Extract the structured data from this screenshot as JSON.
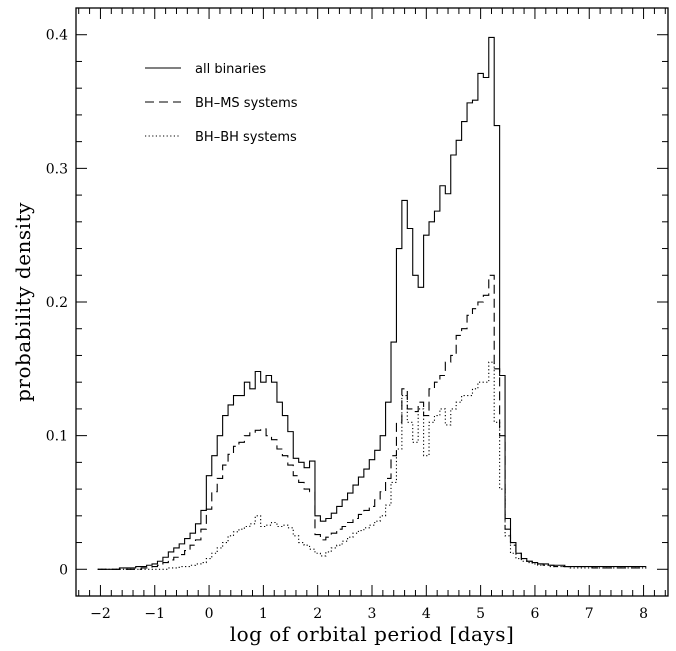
{
  "chart_data": {
    "type": "line",
    "xlabel": "log of orbital period [days]",
    "ylabel": "probability density",
    "xlim": [
      -2.45,
      8.45
    ],
    "ylim": [
      -0.02,
      0.42
    ],
    "x_ticks": [
      -2,
      -1,
      0,
      1,
      2,
      3,
      4,
      5,
      6,
      7,
      8
    ],
    "x_tick_labels": [
      "−2",
      "−1",
      "0",
      "1",
      "2",
      "3",
      "4",
      "5",
      "6",
      "7",
      "8"
    ],
    "y_ticks": [
      0,
      0.1,
      0.2,
      0.3,
      0.4
    ],
    "y_tick_labels": [
      "0",
      "0.1",
      "0.2",
      "0.3",
      "0.4"
    ],
    "grid": false,
    "legend_position": "top-left",
    "bin_width": 0.1,
    "series": [
      {
        "name": "all binaries",
        "style": "solid",
        "x": [
          -2.0,
          -1.9,
          -1.8,
          -1.7,
          -1.6,
          -1.5,
          -1.4,
          -1.3,
          -1.2,
          -1.1,
          -1.0,
          -0.9,
          -0.8,
          -0.7,
          -0.6,
          -0.5,
          -0.4,
          -0.3,
          -0.2,
          -0.1,
          0.0,
          0.1,
          0.2,
          0.3,
          0.4,
          0.5,
          0.6,
          0.7,
          0.8,
          0.9,
          1.0,
          1.1,
          1.2,
          1.3,
          1.4,
          1.5,
          1.6,
          1.7,
          1.8,
          1.9,
          2.0,
          2.1,
          2.2,
          2.3,
          2.4,
          2.5,
          2.6,
          2.7,
          2.8,
          2.9,
          3.0,
          3.1,
          3.2,
          3.3,
          3.4,
          3.5,
          3.6,
          3.7,
          3.8,
          3.9,
          4.0,
          4.1,
          4.2,
          4.3,
          4.4,
          4.5,
          4.6,
          4.7,
          4.8,
          4.9,
          5.0,
          5.1,
          5.2,
          5.3,
          5.4,
          5.5,
          5.6,
          5.7,
          5.8,
          5.9,
          6.0,
          6.1,
          6.2,
          6.3,
          6.4,
          6.5,
          6.6,
          6.7,
          6.8,
          6.9,
          7.0,
          7.1,
          7.2,
          7.3,
          7.4,
          7.5,
          7.6,
          7.7,
          7.8,
          7.9,
          8.0
        ],
        "values": [
          0,
          0,
          0,
          0,
          0.001,
          0.001,
          0.001,
          0.002,
          0.002,
          0.003,
          0.004,
          0.006,
          0.009,
          0.013,
          0.016,
          0.019,
          0.023,
          0.027,
          0.034,
          0.044,
          0.07,
          0.085,
          0.1,
          0.115,
          0.123,
          0.13,
          0.13,
          0.14,
          0.135,
          0.148,
          0.14,
          0.145,
          0.14,
          0.125,
          0.115,
          0.103,
          0.083,
          0.08,
          0.076,
          0.081,
          0.04,
          0.036,
          0.038,
          0.042,
          0.047,
          0.052,
          0.057,
          0.063,
          0.069,
          0.075,
          0.082,
          0.089,
          0.1,
          0.125,
          0.17,
          0.24,
          0.276,
          0.255,
          0.22,
          0.211,
          0.25,
          0.26,
          0.268,
          0.287,
          0.281,
          0.31,
          0.321,
          0.335,
          0.349,
          0.351,
          0.371,
          0.368,
          0.398,
          0.332,
          0.145,
          0.038,
          0.02,
          0.012,
          0.008,
          0.006,
          0.005,
          0.004,
          0.004,
          0.003,
          0.003,
          0.003,
          0.002,
          0.002,
          0.002,
          0.002,
          0.002,
          0.002,
          0.002,
          0.002,
          0.002,
          0.002,
          0.002,
          0.002,
          0.002,
          0.002,
          0.002
        ]
      },
      {
        "name": "BH–MS systems",
        "style": "dashed",
        "x": [
          -2.0,
          -1.9,
          -1.8,
          -1.7,
          -1.6,
          -1.5,
          -1.4,
          -1.3,
          -1.2,
          -1.1,
          -1.0,
          -0.9,
          -0.8,
          -0.7,
          -0.6,
          -0.5,
          -0.4,
          -0.3,
          -0.2,
          -0.1,
          0.0,
          0.1,
          0.2,
          0.3,
          0.4,
          0.5,
          0.6,
          0.7,
          0.8,
          0.9,
          1.0,
          1.1,
          1.2,
          1.3,
          1.4,
          1.5,
          1.6,
          1.7,
          1.8,
          1.9,
          2.0,
          2.1,
          2.2,
          2.3,
          2.4,
          2.5,
          2.6,
          2.7,
          2.8,
          2.9,
          3.0,
          3.1,
          3.2,
          3.3,
          3.4,
          3.5,
          3.6,
          3.7,
          3.8,
          3.9,
          4.0,
          4.1,
          4.2,
          4.3,
          4.4,
          4.5,
          4.6,
          4.7,
          4.8,
          4.9,
          5.0,
          5.1,
          5.2,
          5.3,
          5.4,
          5.5,
          5.6,
          5.7,
          5.8,
          5.9,
          6.0,
          6.1,
          6.2,
          6.3,
          6.4,
          6.5,
          6.6,
          6.7,
          6.8,
          6.9,
          7.0,
          7.1,
          7.2,
          7.3,
          7.4,
          7.5,
          7.6,
          7.7,
          7.8,
          7.9,
          8.0
        ],
        "values": [
          0,
          0,
          0,
          0,
          0,
          0,
          0,
          0,
          0.001,
          0.001,
          0.002,
          0.003,
          0.005,
          0.007,
          0.009,
          0.011,
          0.014,
          0.018,
          0.022,
          0.03,
          0.045,
          0.058,
          0.068,
          0.078,
          0.086,
          0.092,
          0.095,
          0.1,
          0.102,
          0.104,
          0.105,
          0.1,
          0.097,
          0.09,
          0.085,
          0.078,
          0.07,
          0.065,
          0.06,
          0.058,
          0.026,
          0.022,
          0.024,
          0.027,
          0.03,
          0.032,
          0.035,
          0.038,
          0.041,
          0.044,
          0.047,
          0.052,
          0.058,
          0.068,
          0.085,
          0.11,
          0.135,
          0.12,
          0.118,
          0.125,
          0.115,
          0.135,
          0.14,
          0.145,
          0.155,
          0.16,
          0.175,
          0.18,
          0.19,
          0.195,
          0.2,
          0.205,
          0.22,
          0.15,
          0.1,
          0.03,
          0.018,
          0.012,
          0.008,
          0.006,
          0.005,
          0.004,
          0.003,
          0.003,
          0.002,
          0.002,
          0.002,
          0.002,
          0.002,
          0.002,
          0.002,
          0.001,
          0.001,
          0.001,
          0.001,
          0.001,
          0.001,
          0.001,
          0.001,
          0.001,
          0.001
        ]
      },
      {
        "name": "BH–BH systems",
        "style": "dotted",
        "x": [
          -2.0,
          -1.9,
          -1.8,
          -1.7,
          -1.6,
          -1.5,
          -1.4,
          -1.3,
          -1.2,
          -1.1,
          -1.0,
          -0.9,
          -0.8,
          -0.7,
          -0.6,
          -0.5,
          -0.4,
          -0.3,
          -0.2,
          -0.1,
          0.0,
          0.1,
          0.2,
          0.3,
          0.4,
          0.5,
          0.6,
          0.7,
          0.8,
          0.9,
          1.0,
          1.1,
          1.2,
          1.3,
          1.4,
          1.5,
          1.6,
          1.7,
          1.8,
          1.9,
          2.0,
          2.1,
          2.2,
          2.3,
          2.4,
          2.5,
          2.6,
          2.7,
          2.8,
          2.9,
          3.0,
          3.1,
          3.2,
          3.3,
          3.4,
          3.5,
          3.6,
          3.7,
          3.8,
          3.9,
          4.0,
          4.1,
          4.2,
          4.3,
          4.4,
          4.5,
          4.6,
          4.7,
          4.8,
          4.9,
          5.0,
          5.1,
          5.2,
          5.3,
          5.4,
          5.5,
          5.6,
          5.7,
          5.8,
          5.9,
          6.0,
          6.1,
          6.2,
          6.3,
          6.4,
          6.5,
          6.6,
          6.7,
          6.8,
          6.9,
          7.0,
          7.1,
          7.2,
          7.3,
          7.4,
          7.5,
          7.6,
          7.7,
          7.8,
          7.9,
          8.0
        ],
        "values": [
          0,
          0,
          0,
          0,
          0,
          0,
          0,
          0,
          0,
          0,
          0,
          0,
          0,
          0.001,
          0.001,
          0.002,
          0.002,
          0.003,
          0.004,
          0.005,
          0.008,
          0.012,
          0.016,
          0.02,
          0.025,
          0.028,
          0.03,
          0.032,
          0.034,
          0.04,
          0.032,
          0.033,
          0.035,
          0.032,
          0.033,
          0.031,
          0.025,
          0.02,
          0.018,
          0.015,
          0.012,
          0.01,
          0.013,
          0.016,
          0.018,
          0.021,
          0.024,
          0.027,
          0.029,
          0.031,
          0.033,
          0.036,
          0.04,
          0.048,
          0.065,
          0.09,
          0.13,
          0.11,
          0.095,
          0.12,
          0.085,
          0.11,
          0.115,
          0.12,
          0.108,
          0.12,
          0.125,
          0.13,
          0.13,
          0.135,
          0.14,
          0.14,
          0.155,
          0.11,
          0.06,
          0.025,
          0.012,
          0.008,
          0.006,
          0.005,
          0.004,
          0.003,
          0.003,
          0.002,
          0.002,
          0.002,
          0.002,
          0.001,
          0.001,
          0.001,
          0.001,
          0.001,
          0.001,
          0.001,
          0.001,
          0.001,
          0.001,
          0.001,
          0.001,
          0.001,
          0.001
        ]
      }
    ]
  }
}
